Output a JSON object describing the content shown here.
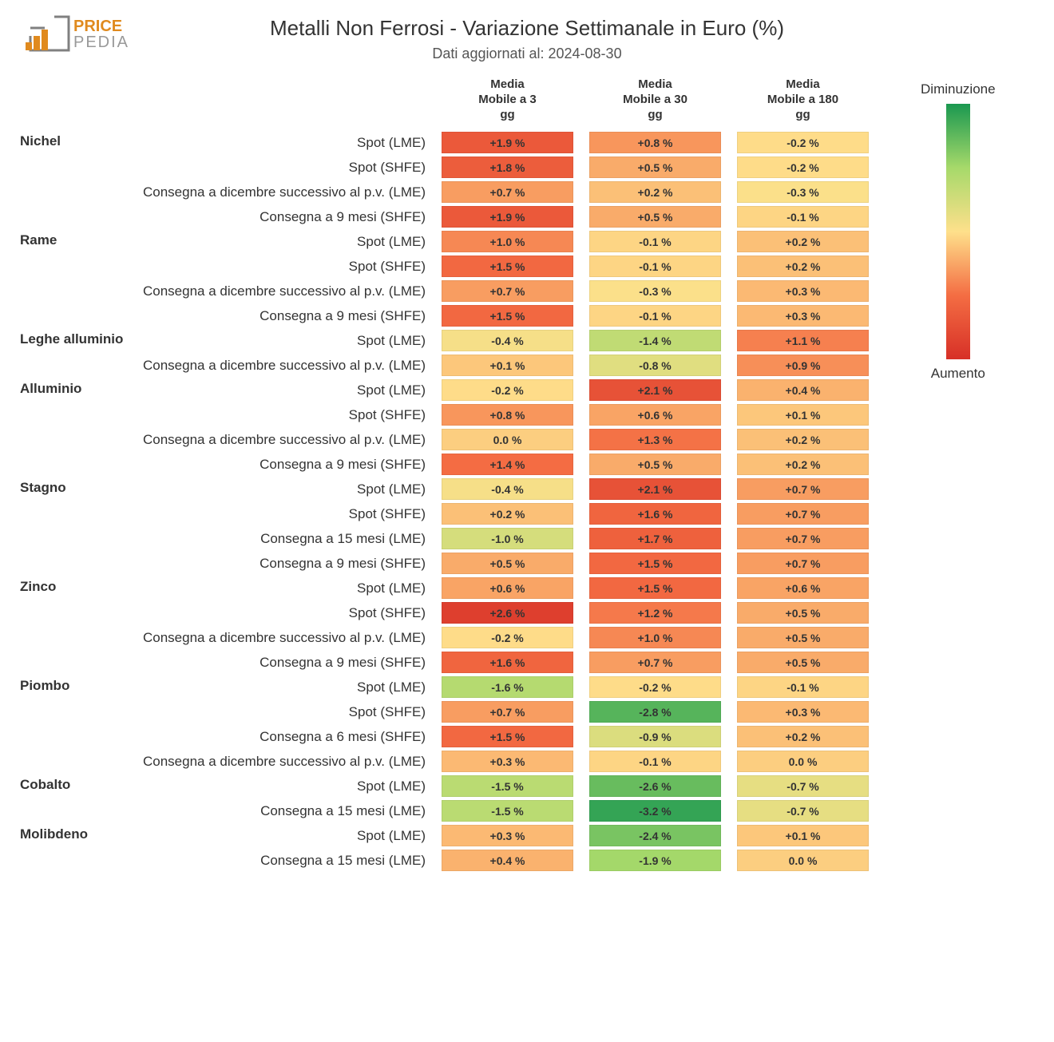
{
  "title": "Metalli Non Ferrosi - Variazione Settimanale in Euro (%)",
  "subtitle": "Dati aggiornati al: 2024-08-30",
  "logo": {
    "text_top": "PRICE",
    "text_bottom": "PEDIA",
    "color": "#e08a1e"
  },
  "columns": [
    {
      "line1": "Media",
      "line2": "Mobile a 3",
      "line3": "gg"
    },
    {
      "line1": "Media",
      "line2": "Mobile a 30",
      "line3": "gg"
    },
    {
      "line1": "Media",
      "line2": "Mobile a 180",
      "line3": "gg"
    }
  ],
  "legend": {
    "top": "Diminuzione",
    "bottom": "Aumento"
  },
  "gradient_stops": [
    {
      "pct": 0,
      "color": "#1a9850"
    },
    {
      "pct": 25,
      "color": "#a6d96a"
    },
    {
      "pct": 50,
      "color": "#fee08b"
    },
    {
      "pct": 75,
      "color": "#f46d43"
    },
    {
      "pct": 100,
      "color": "#d73027"
    }
  ],
  "color_scale": {
    "min": -3.5,
    "max": 3.0
  },
  "groups": [
    {
      "name": "Nichel",
      "rows": [
        {
          "label": "Spot (LME)",
          "vals": [
            1.9,
            0.8,
            -0.2
          ]
        },
        {
          "label": "Spot (SHFE)",
          "vals": [
            1.8,
            0.5,
            -0.2
          ]
        },
        {
          "label": "Consegna a dicembre successivo al p.v. (LME)",
          "vals": [
            0.7,
            0.2,
            -0.3
          ]
        },
        {
          "label": "Consegna a 9 mesi (SHFE)",
          "vals": [
            1.9,
            0.5,
            -0.1
          ]
        }
      ]
    },
    {
      "name": "Rame",
      "rows": [
        {
          "label": "Spot (LME)",
          "vals": [
            1.0,
            -0.1,
            0.2
          ]
        },
        {
          "label": "Spot (SHFE)",
          "vals": [
            1.5,
            -0.1,
            0.2
          ]
        },
        {
          "label": "Consegna a dicembre successivo al p.v. (LME)",
          "vals": [
            0.7,
            -0.3,
            0.3
          ]
        },
        {
          "label": "Consegna a 9 mesi (SHFE)",
          "vals": [
            1.5,
            -0.1,
            0.3
          ]
        }
      ]
    },
    {
      "name": "Leghe alluminio",
      "rows": [
        {
          "label": "Spot (LME)",
          "vals": [
            -0.4,
            -1.4,
            1.1
          ]
        },
        {
          "label": "Consegna a dicembre successivo al p.v. (LME)",
          "vals": [
            0.1,
            -0.8,
            0.9
          ]
        }
      ]
    },
    {
      "name": "Alluminio",
      "rows": [
        {
          "label": "Spot (LME)",
          "vals": [
            -0.2,
            2.1,
            0.4
          ]
        },
        {
          "label": "Spot (SHFE)",
          "vals": [
            0.8,
            0.6,
            0.1
          ]
        },
        {
          "label": "Consegna a dicembre successivo al p.v. (LME)",
          "vals": [
            0.0,
            1.3,
            0.2
          ]
        },
        {
          "label": "Consegna a 9 mesi (SHFE)",
          "vals": [
            1.4,
            0.5,
            0.2
          ]
        }
      ]
    },
    {
      "name": "Stagno",
      "rows": [
        {
          "label": "Spot (LME)",
          "vals": [
            -0.4,
            2.1,
            0.7
          ]
        },
        {
          "label": "Spot (SHFE)",
          "vals": [
            0.2,
            1.6,
            0.7
          ]
        },
        {
          "label": "Consegna a 15 mesi (LME)",
          "vals": [
            -1.0,
            1.7,
            0.7
          ]
        },
        {
          "label": "Consegna a 9 mesi (SHFE)",
          "vals": [
            0.5,
            1.5,
            0.7
          ]
        }
      ]
    },
    {
      "name": "Zinco",
      "rows": [
        {
          "label": "Spot (LME)",
          "vals": [
            0.6,
            1.5,
            0.6
          ]
        },
        {
          "label": "Spot (SHFE)",
          "vals": [
            2.6,
            1.2,
            0.5
          ]
        },
        {
          "label": "Consegna a dicembre successivo al p.v. (LME)",
          "vals": [
            -0.2,
            1.0,
            0.5
          ]
        },
        {
          "label": "Consegna a 9 mesi (SHFE)",
          "vals": [
            1.6,
            0.7,
            0.5
          ]
        }
      ]
    },
    {
      "name": "Piombo",
      "rows": [
        {
          "label": "Spot (LME)",
          "vals": [
            -1.6,
            -0.2,
            -0.1
          ]
        },
        {
          "label": "Spot (SHFE)",
          "vals": [
            0.7,
            -2.8,
            0.3
          ]
        },
        {
          "label": "Consegna a 6 mesi (SHFE)",
          "vals": [
            1.5,
            -0.9,
            0.2
          ]
        },
        {
          "label": "Consegna a dicembre successivo al p.v. (LME)",
          "vals": [
            0.3,
            -0.1,
            0.0
          ]
        }
      ]
    },
    {
      "name": "Cobalto",
      "rows": [
        {
          "label": "Spot (LME)",
          "vals": [
            -1.5,
            -2.6,
            -0.7
          ]
        },
        {
          "label": "Consegna a 15 mesi (LME)",
          "vals": [
            -1.5,
            -3.2,
            -0.7
          ]
        }
      ]
    },
    {
      "name": "Molibdeno",
      "rows": [
        {
          "label": "Spot (LME)",
          "vals": [
            0.3,
            -2.4,
            0.1
          ]
        },
        {
          "label": "Consegna a 15 mesi (LME)",
          "vals": [
            0.4,
            -1.9,
            0.0
          ]
        }
      ]
    }
  ]
}
